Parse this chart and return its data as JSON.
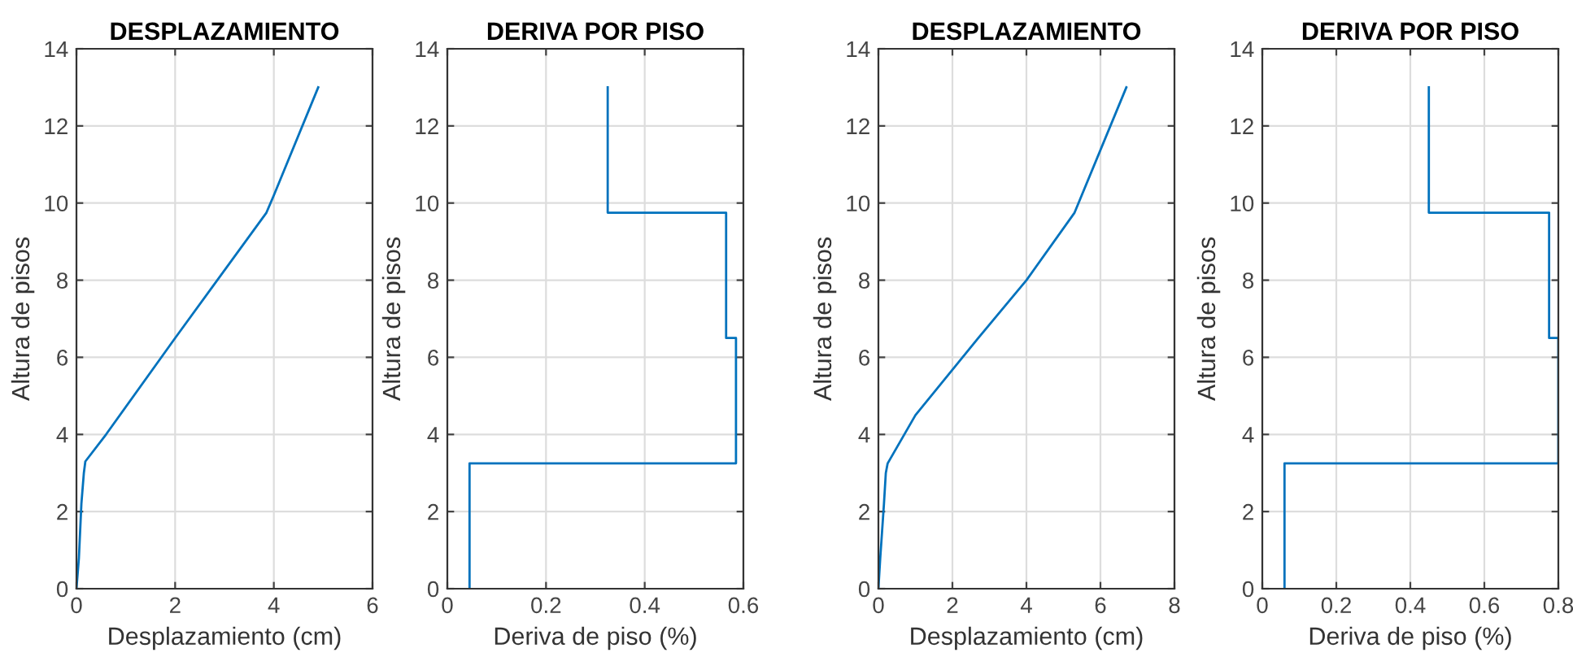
{
  "chart_data": [
    {
      "type": "line",
      "title": "DESPLAZAMIENTO",
      "xlabel": "Desplazamiento (cm)",
      "ylabel": "Altura de pisos",
      "xlim": [
        0,
        6
      ],
      "xticks": [
        0,
        2,
        4,
        6
      ],
      "ylim": [
        0,
        14
      ],
      "yticks": [
        0,
        2,
        4,
        6,
        8,
        10,
        12,
        14
      ],
      "grid": true,
      "series": [
        {
          "color": "#0072bd",
          "x": [
            0,
            0.05,
            0.1,
            0.15,
            0.18,
            0.6,
            2,
            3.85,
            4.0,
            4.9
          ],
          "values": [
            0,
            0.8,
            2.2,
            3.0,
            3.3,
            4.0,
            6.5,
            9.75,
            10.2,
            13
          ]
        }
      ]
    },
    {
      "type": "line",
      "title": "DERIVA POR PISO",
      "xlabel": "Deriva de piso (%)",
      "ylabel": "Altura de pisos",
      "xlim": [
        0,
        0.6
      ],
      "xticks": [
        0,
        0.2,
        0.4,
        0.6
      ],
      "ylim": [
        0,
        14
      ],
      "yticks": [
        0,
        2,
        4,
        6,
        8,
        10,
        12,
        14
      ],
      "grid": true,
      "series": [
        {
          "color": "#0072bd",
          "x": [
            0.045,
            0.045,
            0.585,
            0.585,
            0.565,
            0.565,
            0.325,
            0.325
          ],
          "values": [
            0,
            3.25,
            3.25,
            6.5,
            6.5,
            9.75,
            9.75,
            13
          ]
        }
      ]
    },
    {
      "type": "line",
      "title": "DESPLAZAMIENTO",
      "xlabel": "Desplazamiento (cm)",
      "ylabel": "Altura de pisos",
      "xlim": [
        0,
        8
      ],
      "xticks": [
        0,
        2,
        4,
        6,
        8
      ],
      "ylim": [
        0,
        14
      ],
      "yticks": [
        0,
        2,
        4,
        6,
        8,
        10,
        12,
        14
      ],
      "grid": true,
      "series": [
        {
          "color": "#0072bd",
          "x": [
            0,
            0.05,
            0.1,
            0.15,
            0.2,
            0.25,
            1,
            2.7,
            4,
            5.3,
            6.7
          ],
          "values": [
            0,
            0.8,
            1.5,
            2.2,
            3.0,
            3.25,
            4.5,
            6.5,
            8,
            9.75,
            13
          ]
        }
      ]
    },
    {
      "type": "line",
      "title": "DERIVA POR PISO",
      "xlabel": "Deriva de piso (%)",
      "ylabel": "Altura de pisos",
      "xlim": [
        0,
        0.8
      ],
      "xticks": [
        0,
        0.2,
        0.4,
        0.6,
        0.8
      ],
      "ylim": [
        0,
        14
      ],
      "yticks": [
        0,
        2,
        4,
        6,
        8,
        10,
        12,
        14
      ],
      "grid": true,
      "series": [
        {
          "color": "#0072bd",
          "x": [
            0.06,
            0.06,
            0.8,
            0.8,
            0.775,
            0.775,
            0.45,
            0.45
          ],
          "values": [
            0,
            3.25,
            3.25,
            6.5,
            6.5,
            9.75,
            9.75,
            13
          ]
        }
      ]
    }
  ]
}
